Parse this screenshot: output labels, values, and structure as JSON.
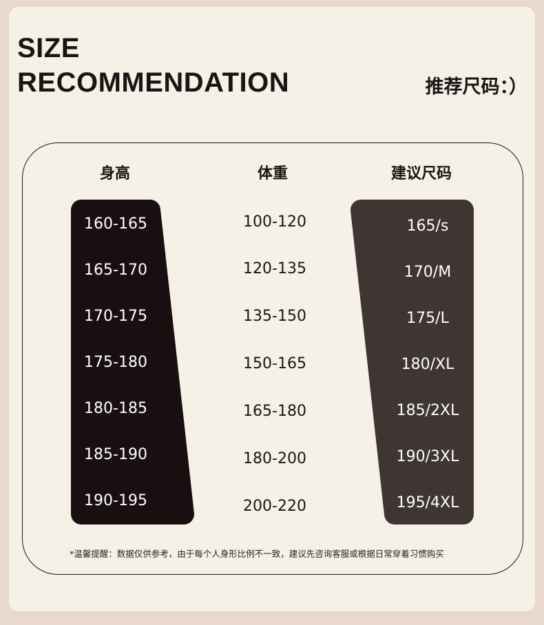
{
  "title_line1": "SIZE",
  "title_line2": "RECOMMENDATION",
  "subtitle": "推荐尺码：）",
  "headers": {
    "height": "身高",
    "weight": "体重",
    "size": "建议尺码"
  },
  "rows": [
    {
      "height": "160-165",
      "weight": "100-120",
      "size": "165/s"
    },
    {
      "height": "165-170",
      "weight": "120-135",
      "size": "170/M"
    },
    {
      "height": "170-175",
      "weight": "135-150",
      "size": "175/L"
    },
    {
      "height": "175-180",
      "weight": "150-165",
      "size": "180/XL"
    },
    {
      "height": "180-185",
      "weight": "165-180",
      "size": "185/2XL"
    },
    {
      "height": "185-190",
      "weight": "180-200",
      "size": "190/3XL"
    },
    {
      "height": "190-195",
      "weight": "200-220",
      "size": "195/4XL"
    }
  ],
  "note": "*温馨提醒：数据仅供参考，由于每个人身形比例不一致，建议先咨询客服或根据日常穿着习惯购买",
  "colors": {
    "background": "#e9d8ce",
    "card": "#f6f1e7",
    "height_column": "#1a0f10",
    "size_column": "#3f3634",
    "text": "#1a1414"
  }
}
